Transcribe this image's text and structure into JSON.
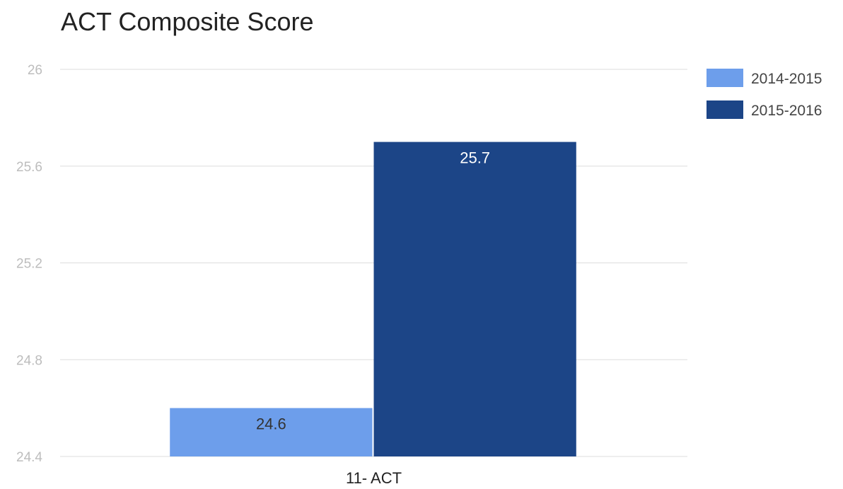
{
  "chart_data": {
    "type": "bar",
    "title": "ACT Composite Score",
    "xlabel": "",
    "ylabel": "",
    "categories": [
      "11- ACT"
    ],
    "series": [
      {
        "name": "2014-2015",
        "values": [
          24.6
        ],
        "color": "#6d9eeb",
        "label_color": "#333333"
      },
      {
        "name": "2015-2016",
        "values": [
          25.7
        ],
        "color": "#1c4587",
        "label_color": "#ffffff"
      }
    ],
    "ylim": [
      24.4,
      26
    ],
    "yticks": [
      "24.4",
      "24.8",
      "25.2",
      "25.6",
      "26"
    ],
    "grid": true,
    "legend_position": "right"
  }
}
